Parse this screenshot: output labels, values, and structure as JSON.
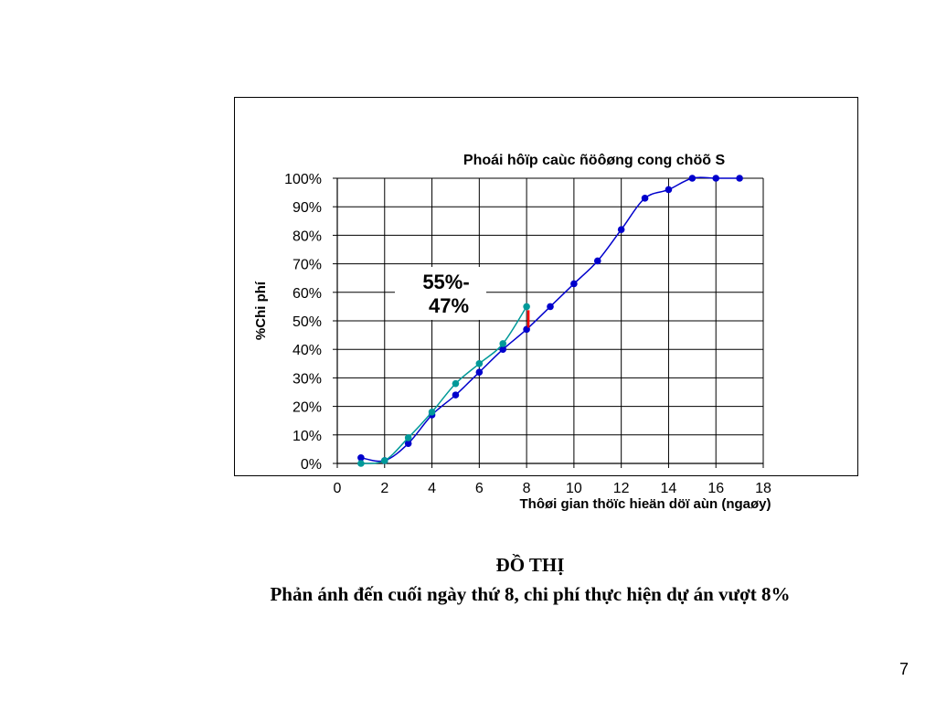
{
  "chart_data": {
    "type": "line",
    "title": "Phoái hôïp caùc ñöôøng cong chöõ S",
    "xlabel": "Thôøi gian thöïc hieän döï aùn (ngaøy)",
    "ylabel": "%Chi phí",
    "xlim": [
      0,
      18
    ],
    "ylim": [
      0,
      100
    ],
    "x_ticks": [
      "0",
      "2",
      "4",
      "6",
      "8",
      "10",
      "12",
      "14",
      "16",
      "18"
    ],
    "y_ticks": [
      "0%",
      "10%",
      "20%",
      "30%",
      "40%",
      "50%",
      "60%",
      "70%",
      "80%",
      "90%",
      "100%"
    ],
    "grid": true,
    "series": [
      {
        "color": "#0000cc",
        "x": [
          1,
          2,
          3,
          4,
          5,
          6,
          7,
          8,
          9,
          10,
          11,
          12,
          13,
          14,
          15,
          16,
          17
        ],
        "y": [
          2,
          1,
          7,
          17,
          24,
          32,
          40,
          47,
          55,
          63,
          71,
          82,
          93,
          96,
          100,
          100,
          100
        ]
      },
      {
        "color": "#009999",
        "x": [
          1,
          2,
          3,
          4,
          5,
          6,
          7,
          8
        ],
        "y": [
          0,
          1,
          9,
          18,
          28,
          35,
          42,
          55
        ]
      }
    ],
    "annotations": [
      {
        "text_line1": "55%-",
        "text_line2": "47%",
        "x": 8,
        "y_from": 47,
        "y_to": 55,
        "color": "#ff0000"
      }
    ]
  },
  "caption": {
    "title": "ĐỒ THỊ",
    "subtitle": "Phản ánh đến cuối ngày thứ 8, chi phí thực hiện dự án vượt 8%"
  },
  "page_number": "7"
}
